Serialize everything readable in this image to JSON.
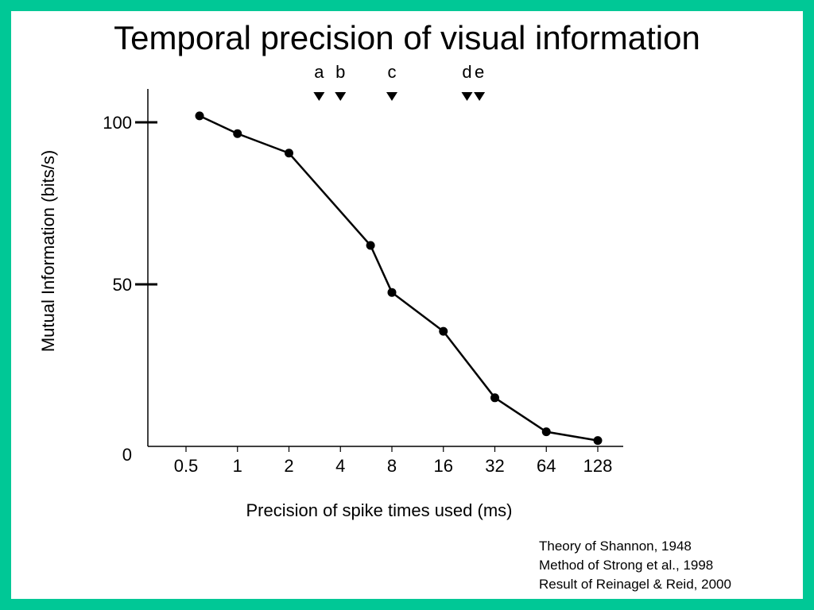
{
  "colors": {
    "frame": "#00c896",
    "background": "#ffffff",
    "ink": "#000000"
  },
  "title": "Temporal precision of visual information",
  "credits": [
    "Theory of Shannon, 1948",
    "Method of Strong et al., 1998",
    "Result of Reinagel & Reid, 2000"
  ],
  "chart_data": {
    "type": "line",
    "title": "Temporal precision of visual information",
    "xlabel": "Precision of spike times used (ms)",
    "ylabel": "Mutual Information (bits/s)",
    "x_scale": "log2",
    "x_ticks": [
      0.5,
      1,
      2,
      4,
      8,
      16,
      32,
      64,
      128
    ],
    "x_tick_labels": [
      "0.5",
      "1",
      "2",
      "4",
      "8",
      "16",
      "32",
      "64",
      "128"
    ],
    "y_ticks": [
      0,
      50,
      100
    ],
    "y_tick_labels": [
      "0",
      "50",
      "100"
    ],
    "ylim": [
      0,
      110
    ],
    "grid": false,
    "series": [
      {
        "x": [
          0.6,
          1,
          2,
          6,
          8,
          16,
          32,
          64,
          128
        ],
        "y": [
          102,
          96.5,
          90.5,
          62,
          47.5,
          35.5,
          15,
          4.5,
          1.8
        ]
      }
    ],
    "markers": [
      {
        "label": "a",
        "x": 3
      },
      {
        "label": "b",
        "x": 4
      },
      {
        "label": "c",
        "x": 8
      },
      {
        "label": "d",
        "x": 22
      },
      {
        "label": "e",
        "x": 26
      }
    ]
  }
}
